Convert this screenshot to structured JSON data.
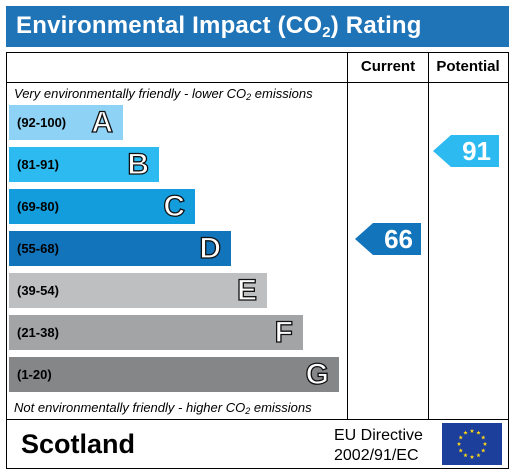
{
  "header": {
    "title_prefix": "Environmental Impact (CO",
    "title_sub": "2",
    "title_suffix": ") Rating"
  },
  "columns": {
    "current": "Current",
    "potential": "Potential"
  },
  "notes": {
    "top_prefix": "Very environmentally friendly - lower CO",
    "top_sub": "2",
    "top_suffix": " emissions",
    "bottom_prefix": "Not environmentally friendly - higher CO",
    "bottom_sub": "2",
    "bottom_suffix": " emissions"
  },
  "bands": [
    {
      "range": "(92-100)",
      "letter": "A",
      "color": "#8ed2f5"
    },
    {
      "range": "(81-91)",
      "letter": "B",
      "color": "#2cbaf0"
    },
    {
      "range": "(69-80)",
      "letter": "C",
      "color": "#149ddc"
    },
    {
      "range": "(55-68)",
      "letter": "D",
      "color": "#1274bb"
    },
    {
      "range": "(39-54)",
      "letter": "E",
      "color": "#bdbfc1"
    },
    {
      "range": "(21-38)",
      "letter": "F",
      "color": "#a3a4a6"
    },
    {
      "range": "(1-20)",
      "letter": "G",
      "color": "#858688"
    }
  ],
  "ratings": {
    "current": {
      "value": "66",
      "band": "D",
      "color": "#1274bb"
    },
    "potential": {
      "value": "91",
      "band": "B",
      "color": "#2cbaf0"
    }
  },
  "footer": {
    "country": "Scotland",
    "directive_line1": "EU Directive",
    "directive_line2": "2002/91/EC",
    "flag_icon": "eu-flag-icon"
  }
}
